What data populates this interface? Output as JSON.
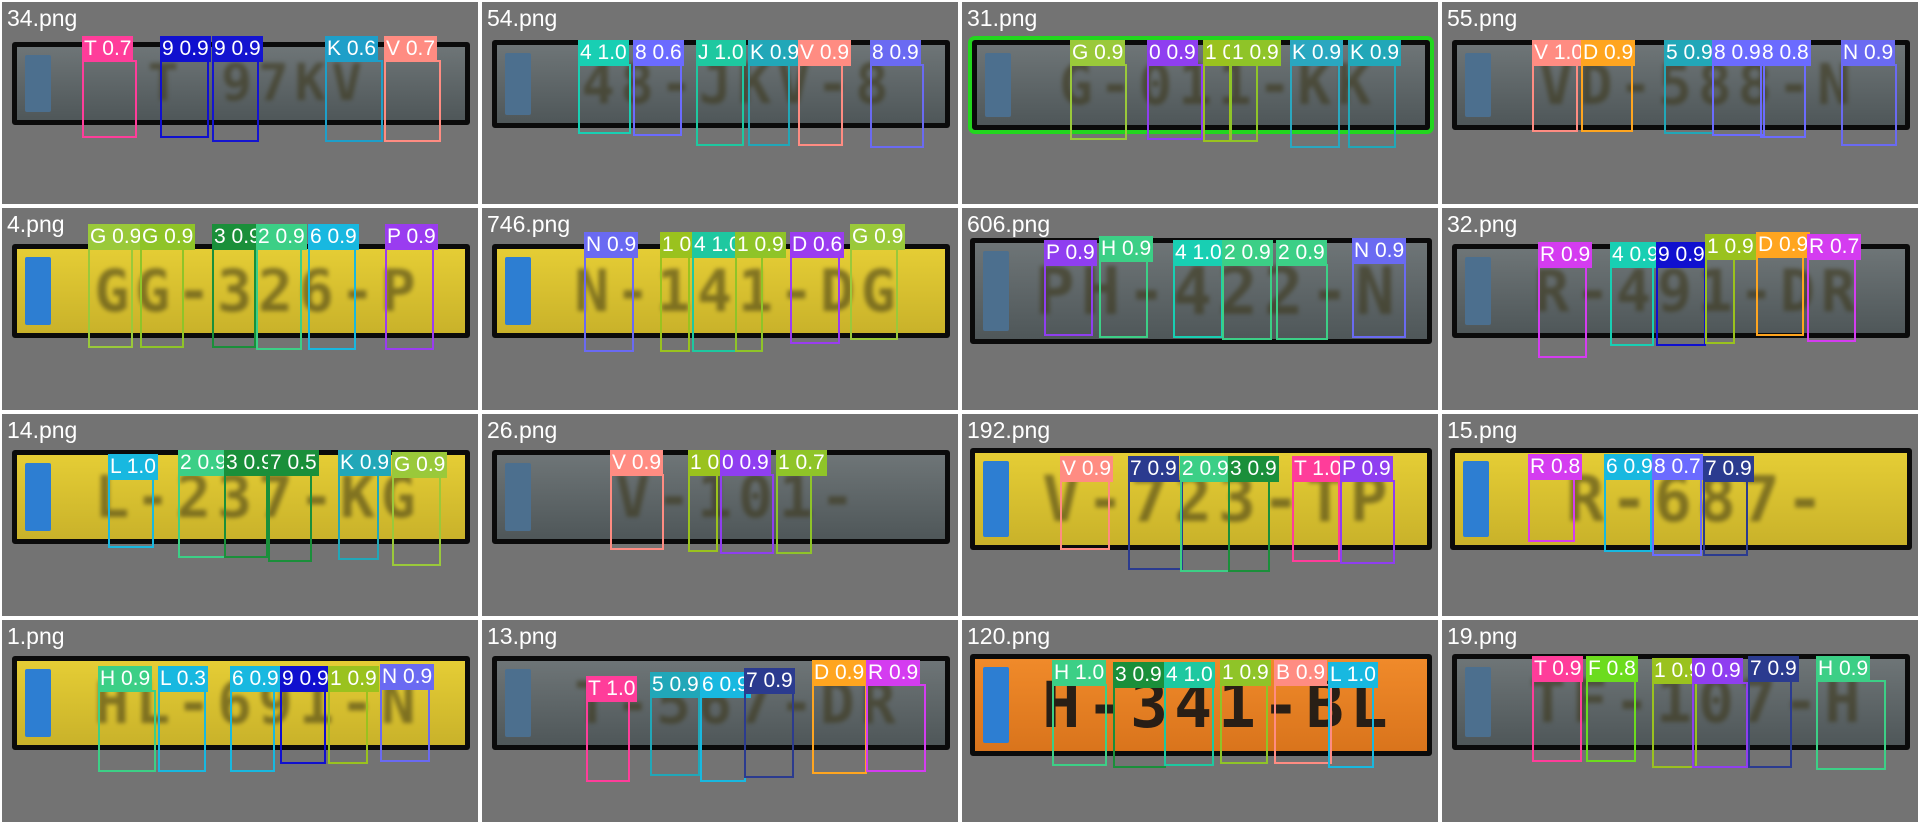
{
  "tiles": [
    {
      "name": "34.png",
      "plate": {
        "style": "dark",
        "text": "T 97KV"
      },
      "detections": [
        {
          "label": "T 0.7",
          "color": "#ff3d9a"
        },
        {
          "label": "9 0.9",
          "color": "#1010cf"
        },
        {
          "label": "9 0.9",
          "color": "#1414d0"
        },
        {
          "label": "K 0.6",
          "color": "#1e9fc9"
        },
        {
          "label": "V 0.7",
          "color": "#ff8c82"
        }
      ]
    },
    {
      "name": "54.png",
      "plate": {
        "style": "dark",
        "text": "48-JKV-8"
      },
      "detections": [
        {
          "label": "4 1.0",
          "color": "#18cfb3"
        },
        {
          "label": "8 0.6",
          "color": "#6b6bff"
        },
        {
          "label": "J 1.0",
          "color": "#1ec8a0"
        },
        {
          "label": "K 0.9",
          "color": "#21a7b8"
        },
        {
          "label": "V 0.9",
          "color": "#ff8c82"
        },
        {
          "label": "8 0.9",
          "color": "#6a6af2"
        }
      ]
    },
    {
      "name": "31.png",
      "plate": {
        "style": "dark",
        "text": "G-011-KK",
        "select": true
      },
      "detections": [
        {
          "label": "G 0.9",
          "color": "#9ac93a"
        },
        {
          "label": "0 0.9",
          "color": "#8f3ef0"
        },
        {
          "label": "1 0.9",
          "color": "#9ac21e"
        },
        {
          "label": "1 0.9",
          "color": "#8fc428"
        },
        {
          "label": "K 0.9",
          "color": "#2aa7c0"
        },
        {
          "label": "K 0.9",
          "color": "#21a7b8"
        }
      ]
    },
    {
      "name": "55.png",
      "plate": {
        "style": "dark",
        "text": "VD-588-N"
      },
      "detections": [
        {
          "label": "V 1.0",
          "color": "#ff8c82"
        },
        {
          "label": "D 0.9",
          "color": "#ffa51f"
        },
        {
          "label": "5 0.9",
          "color": "#21a7b8"
        },
        {
          "label": "8 0.9",
          "color": "#6b6bff"
        },
        {
          "label": "8 0.8",
          "color": "#6b6bff"
        },
        {
          "label": "N 0.9",
          "color": "#6a6af2"
        }
      ]
    },
    {
      "name": "4.png",
      "plate": {
        "style": "yellow",
        "text": "GG-326-P"
      },
      "detections": [
        {
          "label": "G 0.9",
          "color": "#9ac93a"
        },
        {
          "label": "G 0.9",
          "color": "#8fc428"
        },
        {
          "label": "3 0.9",
          "color": "#1a8f3a"
        },
        {
          "label": "2 0.9",
          "color": "#3ccf86"
        },
        {
          "label": "6 0.9",
          "color": "#18b8e0"
        },
        {
          "label": "P 0.9",
          "color": "#9a3cf0"
        }
      ]
    },
    {
      "name": "746.png",
      "plate": {
        "style": "yellow",
        "text": "N-141-DG"
      },
      "detections": [
        {
          "label": "N 0.9",
          "color": "#6a6af2"
        },
        {
          "label": "1 0.9",
          "color": "#9ac21e"
        },
        {
          "label": "4 1.0",
          "color": "#1ec8a0"
        },
        {
          "label": "1 0.9",
          "color": "#8fc428"
        },
        {
          "label": "D 0.6",
          "color": "#9a3cf0"
        },
        {
          "label": "G 0.9",
          "color": "#9ac93a"
        }
      ]
    },
    {
      "name": "606.png",
      "plate": {
        "style": "dark",
        "text": "PH-422-N"
      },
      "detections": [
        {
          "label": "P 0.9",
          "color": "#8f3ef0"
        },
        {
          "label": "H 0.9",
          "color": "#3ccf86"
        },
        {
          "label": "4 1.0",
          "color": "#18cfb3"
        },
        {
          "label": "2 0.9",
          "color": "#3ccf86"
        },
        {
          "label": "2 0.9",
          "color": "#3ccf86"
        },
        {
          "label": "N 0.9",
          "color": "#6a6af2"
        }
      ]
    },
    {
      "name": "32.png",
      "plate": {
        "style": "dark",
        "text": "R-491-DR"
      },
      "detections": [
        {
          "label": "R 0.9",
          "color": "#d43cf0"
        },
        {
          "label": "4 0.9",
          "color": "#18cfb3"
        },
        {
          "label": "9 0.9",
          "color": "#1010cf"
        },
        {
          "label": "1 0.9",
          "color": "#9ac21e"
        },
        {
          "label": "D 0.9",
          "color": "#ffa51f"
        },
        {
          "label": "R 0.7",
          "color": "#d43cf0"
        }
      ]
    },
    {
      "name": "14.png",
      "plate": {
        "style": "yellow",
        "text": "L-237-KG"
      },
      "detections": [
        {
          "label": "L 1.0",
          "color": "#18b8e0"
        },
        {
          "label": "2 0.9",
          "color": "#3ccf86"
        },
        {
          "label": "3 0.9",
          "color": "#1a8f3a"
        },
        {
          "label": "7 0.5",
          "color": "#1a8f3a"
        },
        {
          "label": "K 0.9",
          "color": "#21a7b8"
        },
        {
          "label": "G 0.9",
          "color": "#9ac93a"
        }
      ]
    },
    {
      "name": "26.png",
      "plate": {
        "style": "dark",
        "text": "V-101-"
      },
      "detections": [
        {
          "label": "V 0.9",
          "color": "#ff8c82"
        },
        {
          "label": "1 0.9",
          "color": "#9ac21e"
        },
        {
          "label": "0 0.9",
          "color": "#8f3ef0"
        },
        {
          "label": "1 0.7",
          "color": "#8fc428"
        }
      ]
    },
    {
      "name": "192.png",
      "plate": {
        "style": "yellow",
        "text": "V-723-TP"
      },
      "detections": [
        {
          "label": "V 0.9",
          "color": "#ff8c82"
        },
        {
          "label": "7 0.9",
          "color": "#2b3b8f"
        },
        {
          "label": "2 0.9",
          "color": "#3ccf86"
        },
        {
          "label": "3 0.9",
          "color": "#1a8f3a"
        },
        {
          "label": "T 1.0",
          "color": "#ff3d9a"
        },
        {
          "label": "P 0.9",
          "color": "#8f3ef0"
        }
      ]
    },
    {
      "name": "15.png",
      "plate": {
        "style": "yellow",
        "text": "R-687-"
      },
      "detections": [
        {
          "label": "R 0.8",
          "color": "#d43cf0"
        },
        {
          "label": "6 0.9",
          "color": "#18b8e0"
        },
        {
          "label": "8 0.7",
          "color": "#6b6bff"
        },
        {
          "label": "7 0.9",
          "color": "#2b3b8f"
        }
      ]
    },
    {
      "name": "1.png",
      "plate": {
        "style": "yellow",
        "text": "HL-691-N"
      },
      "detections": [
        {
          "label": "H 0.9",
          "color": "#3ccf86"
        },
        {
          "label": "L 0.3",
          "color": "#18b8e0"
        },
        {
          "label": "6 0.9",
          "color": "#18b8e0"
        },
        {
          "label": "9 0.9",
          "color": "#1010cf"
        },
        {
          "label": "1 0.9",
          "color": "#9ac21e"
        },
        {
          "label": "N 0.9",
          "color": "#6a6af2"
        }
      ]
    },
    {
      "name": "13.png",
      "plate": {
        "style": "dark",
        "text": "T-567-DR"
      },
      "detections": [
        {
          "label": "T 1.0",
          "color": "#ff3d9a"
        },
        {
          "label": "5 0.9",
          "color": "#21a7b8"
        },
        {
          "label": "6 0.9",
          "color": "#18b8e0"
        },
        {
          "label": "7 0.9",
          "color": "#2b3b8f"
        },
        {
          "label": "D 0.9",
          "color": "#ffa51f"
        },
        {
          "label": "R 0.9",
          "color": "#d43cf0"
        }
      ]
    },
    {
      "name": "120.png",
      "plate": {
        "style": "orange",
        "text": "H-341-BL",
        "sharp": true
      },
      "detections": [
        {
          "label": "H 1.0",
          "color": "#3ccf86"
        },
        {
          "label": "3 0.9",
          "color": "#1a8f3a"
        },
        {
          "label": "4 1.0",
          "color": "#1ec8a0"
        },
        {
          "label": "1 0.9",
          "color": "#8fc428"
        },
        {
          "label": "B 0.9",
          "color": "#ff8c82"
        },
        {
          "label": "L 1.0",
          "color": "#18b8e0"
        }
      ]
    },
    {
      "name": "19.png",
      "plate": {
        "style": "dark",
        "text": "TF-107-H"
      },
      "detections": [
        {
          "label": "T 0.9",
          "color": "#ff3d9a"
        },
        {
          "label": "F 0.8",
          "color": "#6cdc1e"
        },
        {
          "label": "1 0.9",
          "color": "#9ac21e"
        },
        {
          "label": "0 0.9",
          "color": "#8f3ef0"
        },
        {
          "label": "7 0.9",
          "color": "#2b3b8f"
        },
        {
          "label": "H 0.9",
          "color": "#3ccf86"
        }
      ]
    }
  ]
}
